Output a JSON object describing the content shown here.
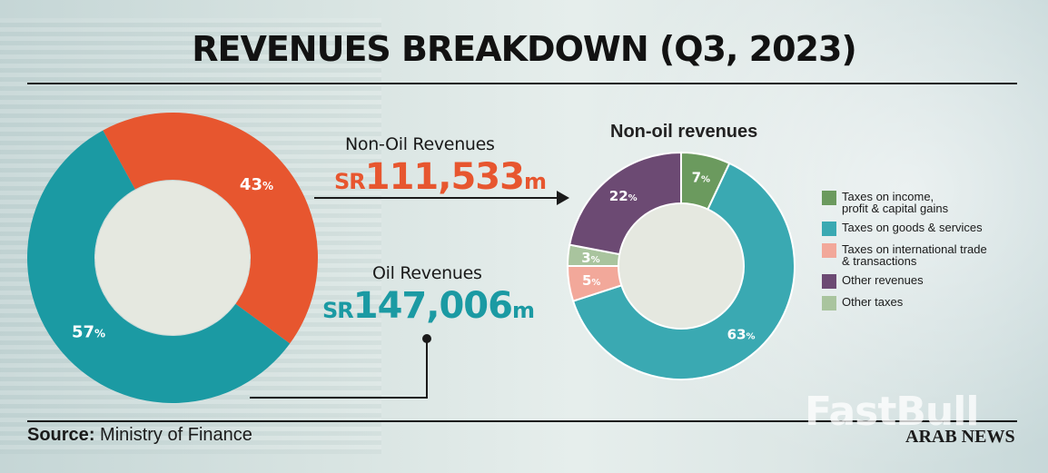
{
  "title": "REVENUES BREAKDOWN (Q3, 2023)",
  "main_chart": {
    "type": "pie",
    "slices": [
      {
        "label": "Non-Oil Revenues",
        "percent": 43,
        "color": "#e7562f",
        "amount_prefix": "SR",
        "amount": "111,533",
        "amount_unit": "m"
      },
      {
        "label": "Oil Revenues",
        "percent": 57,
        "color": "#1b9aa3",
        "amount_prefix": "SR",
        "amount": "147,006",
        "amount_unit": "m"
      }
    ],
    "percent_symbol": "%"
  },
  "chart_data": [
    {
      "type": "pie",
      "categories": [
        "Non-Oil Revenues",
        "Oil Revenues"
      ],
      "values": [
        43,
        57
      ],
      "amounts": [
        "SR111,533m",
        "SR147,006m"
      ],
      "title": "",
      "colors": [
        "#e7562f",
        "#1b9aa3"
      ]
    },
    {
      "type": "pie",
      "title": "Non-oil revenues",
      "categories": [
        "Taxes on income, profit & capital gains",
        "Taxes on goods & services",
        "Taxes on international trade & transactions",
        "Other taxes",
        "Other revenues"
      ],
      "values": [
        7,
        63,
        5,
        3,
        22
      ],
      "colors": [
        "#6b9a5e",
        "#3aa9b2",
        "#f2a89a",
        "#a9c49e",
        "#6c4a73"
      ],
      "legend_placement": "right"
    }
  ],
  "non_oil_chart": {
    "subtitle": "Non-oil revenues",
    "slices": [
      {
        "label": "Taxes on income, profit & capital gains",
        "percent": 7,
        "color": "#6b9a5e"
      },
      {
        "label": "Taxes on goods & services",
        "percent": 63,
        "color": "#3aa9b2"
      },
      {
        "label": "Taxes on international trade & transactions",
        "percent": 5,
        "color": "#f2a89a"
      },
      {
        "label": "Other taxes",
        "percent": 3,
        "color": "#a9c49e"
      },
      {
        "label": "Other revenues",
        "percent": 22,
        "color": "#6c4a73"
      }
    ],
    "legend": [
      {
        "line1": "Taxes on income,",
        "line2": "profit & capital gains",
        "color": "#6b9a5e"
      },
      {
        "line1": "Taxes on goods & services",
        "line2": "",
        "color": "#3aa9b2"
      },
      {
        "line1": "Taxes on international trade",
        "line2": "& transactions",
        "color": "#f2a89a"
      },
      {
        "line1": "Other revenues",
        "line2": "",
        "color": "#6c4a73"
      },
      {
        "line1": "Other taxes",
        "line2": "",
        "color": "#a9c49e"
      }
    ]
  },
  "footer": {
    "source_label": "Source",
    "source_sep": ":",
    "source_text": " Ministry of Finance",
    "brand": "ARAB NEWS",
    "watermark": "FastBull"
  }
}
